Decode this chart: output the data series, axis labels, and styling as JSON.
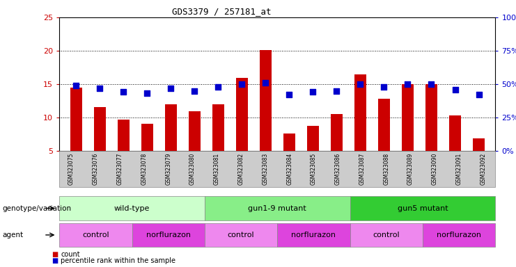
{
  "title": "GDS3379 / 257181_at",
  "samples": [
    "GSM323075",
    "GSM323076",
    "GSM323077",
    "GSM323078",
    "GSM323079",
    "GSM323080",
    "GSM323081",
    "GSM323082",
    "GSM323083",
    "GSM323084",
    "GSM323085",
    "GSM323086",
    "GSM323087",
    "GSM323088",
    "GSM323089",
    "GSM323090",
    "GSM323091",
    "GSM323092"
  ],
  "counts": [
    14.5,
    11.6,
    9.7,
    9.1,
    12.0,
    10.9,
    12.0,
    15.9,
    20.1,
    7.6,
    8.7,
    10.5,
    16.5,
    12.8,
    15.0,
    15.0,
    10.3,
    6.9
  ],
  "percentiles": [
    49,
    47,
    44,
    43,
    47,
    45,
    48,
    50,
    51,
    42,
    44,
    45,
    50,
    48,
    50,
    50,
    46,
    42
  ],
  "ylim_left": [
    5,
    25
  ],
  "ylim_right": [
    0,
    100
  ],
  "yticks_left": [
    5,
    10,
    15,
    20,
    25
  ],
  "yticks_right": [
    0,
    25,
    50,
    75,
    100
  ],
  "bar_color": "#cc0000",
  "dot_color": "#0000cc",
  "bar_width": 0.5,
  "dot_size": 30,
  "genotype_groups": [
    {
      "label": "wild-type",
      "start": 0,
      "end": 5,
      "color": "#ccffcc"
    },
    {
      "label": "gun1-9 mutant",
      "start": 6,
      "end": 11,
      "color": "#88ee88"
    },
    {
      "label": "gun5 mutant",
      "start": 12,
      "end": 17,
      "color": "#33cc33"
    }
  ],
  "agent_groups": [
    {
      "label": "control",
      "start": 0,
      "end": 2,
      "color": "#ee88ee"
    },
    {
      "label": "norflurazon",
      "start": 3,
      "end": 5,
      "color": "#dd44dd"
    },
    {
      "label": "control",
      "start": 6,
      "end": 8,
      "color": "#ee88ee"
    },
    {
      "label": "norflurazon",
      "start": 9,
      "end": 11,
      "color": "#dd44dd"
    },
    {
      "label": "control",
      "start": 12,
      "end": 14,
      "color": "#ee88ee"
    },
    {
      "label": "norflurazon",
      "start": 15,
      "end": 17,
      "color": "#dd44dd"
    }
  ],
  "background_color": "#ffffff",
  "tick_label_color_left": "#cc0000",
  "tick_label_color_right": "#0000cc",
  "legend_count_label": "count",
  "legend_pct_label": "percentile rank within the sample",
  "genotype_label": "genotype/variation",
  "agent_label": "agent",
  "xstrip_color": "#cccccc"
}
